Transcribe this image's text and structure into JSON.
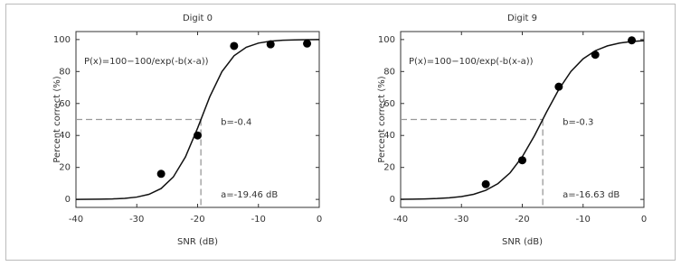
{
  "chart_data": [
    {
      "type": "scatter",
      "title": "Digit 0",
      "xlabel": "SNR (dB)",
      "ylabel": "Percent correct (%)",
      "x": [
        -26,
        -20,
        -14,
        -8,
        -2
      ],
      "values": [
        16,
        40,
        96,
        97,
        97.5
      ],
      "color": "#000000",
      "fit_x": [
        -40,
        -38,
        -36,
        -34,
        -32,
        -30,
        -28,
        -26,
        -24,
        -22,
        -20,
        -18,
        -16,
        -14,
        -12,
        -10,
        -8,
        -6,
        -4,
        -2,
        0
      ],
      "fit_values": [
        0.03,
        0.06,
        0.13,
        0.3,
        0.66,
        1.45,
        3.18,
        6.81,
        13.99,
        26.58,
        44.62,
        64.19,
        79.96,
        89.88,
        95.18,
        97.78,
        98.99,
        99.54,
        99.79,
        99.91,
        99.96
      ],
      "threshold": {
        "x": -19.46,
        "y": 50
      },
      "formula": "P(x)=100−100/exp(-b(x-a))",
      "slope_label": "b=-0.4",
      "threshold_label": "a=-19.46 dB",
      "xlim": [
        -40,
        0
      ],
      "ylim": [
        -5,
        105
      ],
      "xticks": [
        -40,
        -30,
        -20,
        -10,
        0
      ],
      "yticks": [
        0,
        20,
        40,
        60,
        80,
        100
      ]
    },
    {
      "type": "scatter",
      "title": "Digit 9",
      "xlabel": "SNR (dB)",
      "ylabel": "Percent correct (%)",
      "x": [
        -26,
        -20,
        -14,
        -8,
        -2
      ],
      "values": [
        9.5,
        24.5,
        70.5,
        90.5,
        99.5
      ],
      "color": "#000000",
      "fit_x": [
        -40,
        -38,
        -36,
        -34,
        -32,
        -30,
        -28,
        -26,
        -24,
        -22,
        -20,
        -18,
        -16,
        -14,
        -12,
        -10,
        -8,
        -6,
        -4,
        -2,
        0
      ],
      "fit_values": [
        0.09,
        0.16,
        0.3,
        0.54,
        0.98,
        1.78,
        3.19,
        5.67,
        9.88,
        16.64,
        26.68,
        39.87,
        54.71,
        68.77,
        80.05,
        87.97,
        93.02,
        96.04,
        97.79,
        98.78,
        99.32
      ],
      "threshold": {
        "x": -16.63,
        "y": 50
      },
      "formula": "P(x)=100−100/exp(-b(x-a))",
      "slope_label": "b=-0.3",
      "threshold_label": "a=-16.63 dB",
      "xlim": [
        -40,
        0
      ],
      "ylim": [
        -5,
        105
      ],
      "xticks": [
        -40,
        -30,
        -20,
        -10,
        0
      ],
      "yticks": [
        0,
        20,
        40,
        60,
        80,
        100
      ]
    }
  ]
}
